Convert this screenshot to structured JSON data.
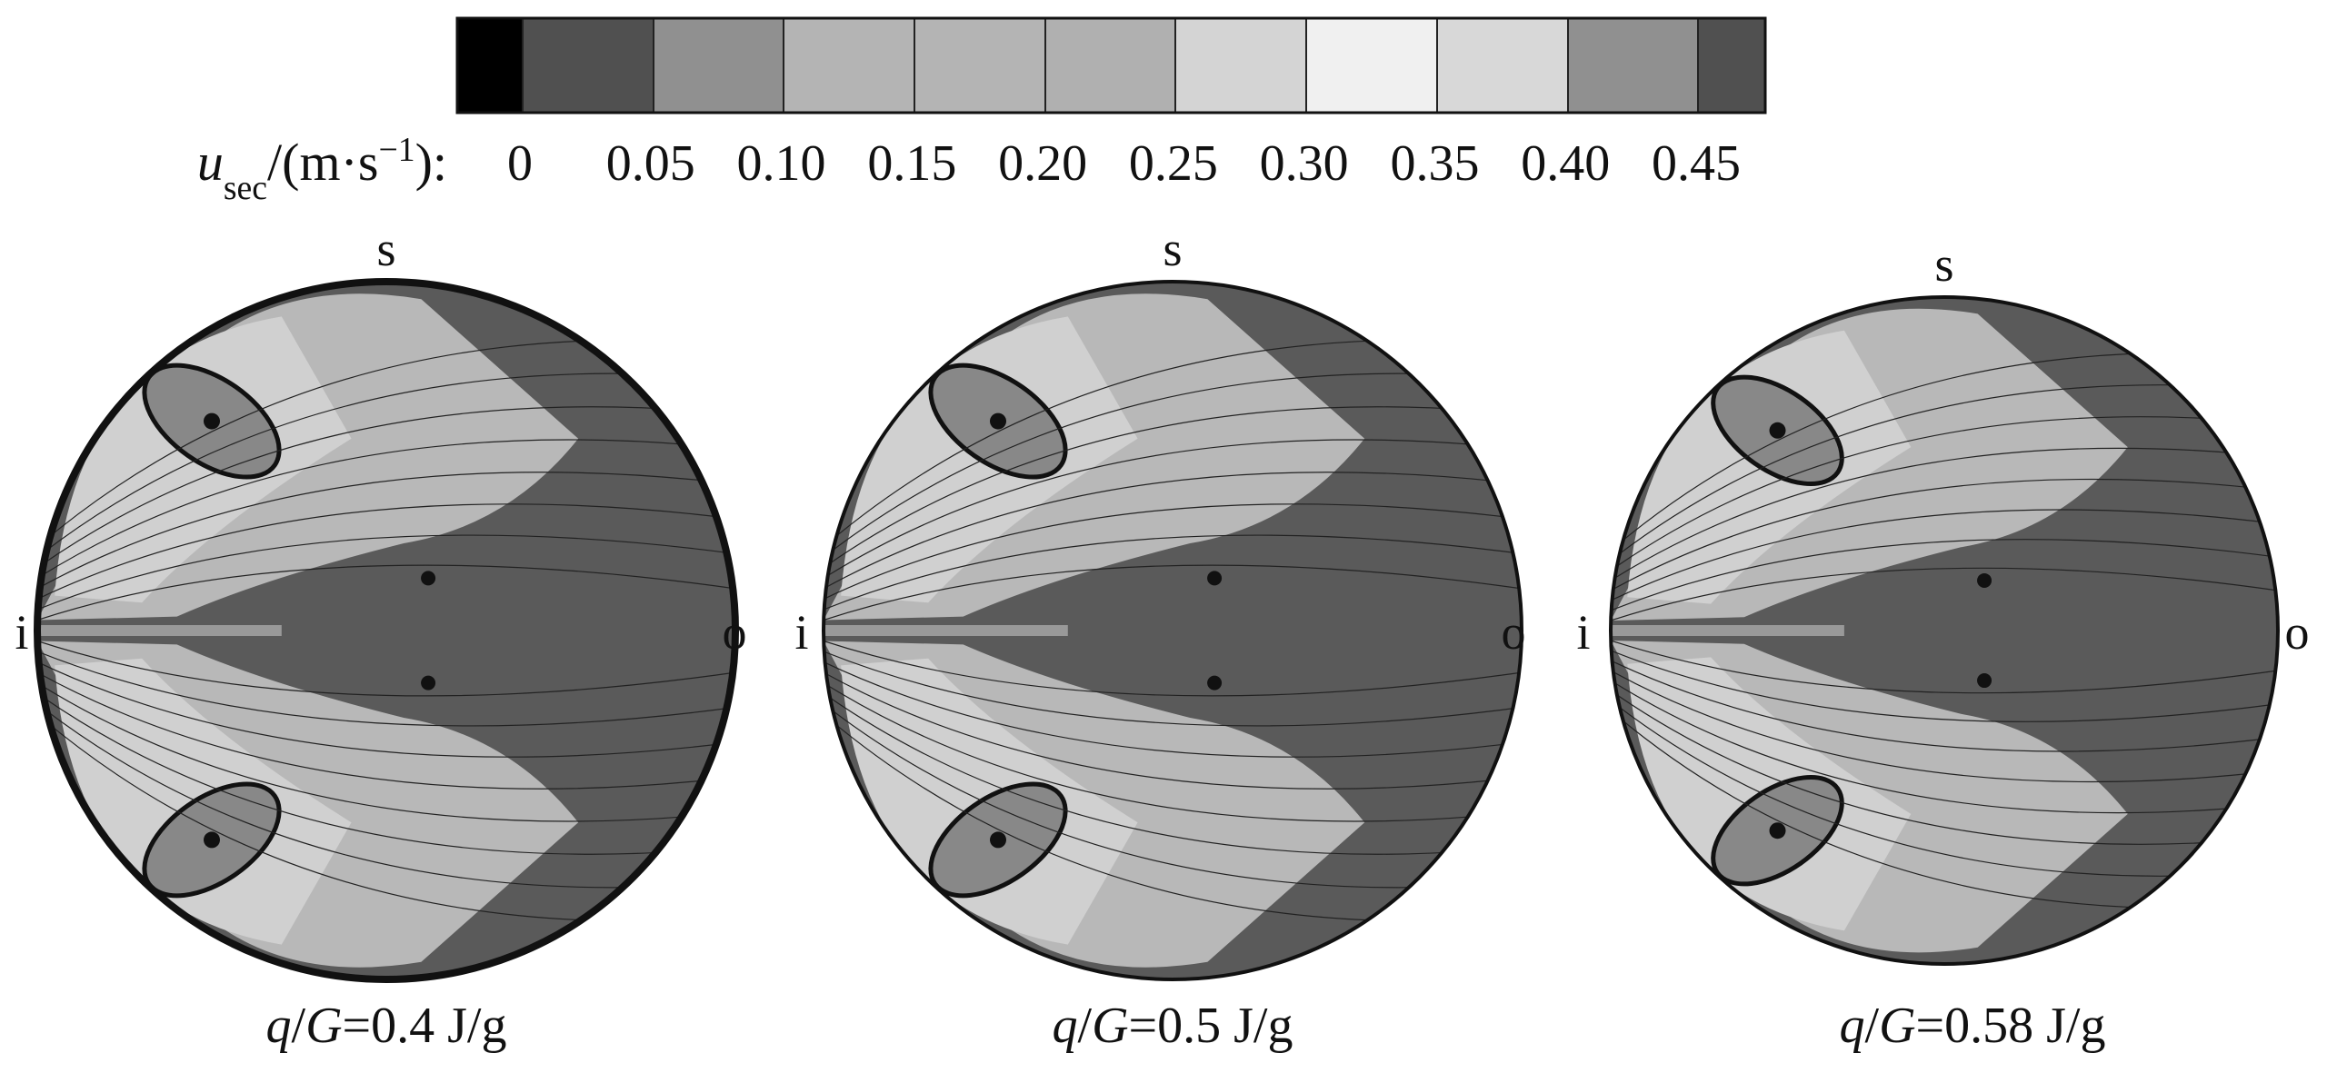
{
  "colorbar": {
    "label": [
      {
        "text": "u",
        "italic": true
      },
      {
        "text": "sec",
        "sub": true
      },
      {
        "text": "/(m·s"
      },
      {
        "text": "−1",
        "sup": true
      },
      {
        "text": "):"
      }
    ],
    "colors": [
      "#000000",
      "#505050",
      "#909090",
      "#b4b4b4",
      "#b4b4b4",
      "#b0b0b0",
      "#d4d4d4",
      "#f0f0f0",
      "#d8d8d8",
      "#909090",
      "#505050"
    ],
    "ticks": [
      0,
      0.05,
      {
        "value": 0.1,
        "label": "0.10"
      },
      0.15,
      {
        "value": 0.2,
        "label": "0.20"
      },
      0.25,
      {
        "value": 0.3,
        "label": "0.30"
      },
      0.35,
      {
        "value": 0.4,
        "label": "0.40"
      },
      0.45
    ]
  },
  "panels": [
    {
      "top": "s",
      "left": "i",
      "right": "o",
      "caption": [
        {
          "text": "q",
          "italic": true
        },
        {
          "text": "/"
        },
        {
          "text": "G",
          "italic": true
        },
        {
          "text": "=0.4 J/g"
        }
      ]
    },
    {
      "top": "s",
      "left": "i",
      "right": "o",
      "caption": [
        {
          "text": "q",
          "italic": true
        },
        {
          "text": "/"
        },
        {
          "text": "G",
          "italic": true
        },
        {
          "text": "=0.5 J/g"
        }
      ]
    },
    {
      "top": "s",
      "left": "i",
      "right": "o",
      "caption": [
        {
          "text": "q",
          "italic": true
        },
        {
          "text": "/"
        },
        {
          "text": "G",
          "italic": true
        },
        {
          "text": "=0.58 J/g"
        }
      ]
    }
  ]
}
